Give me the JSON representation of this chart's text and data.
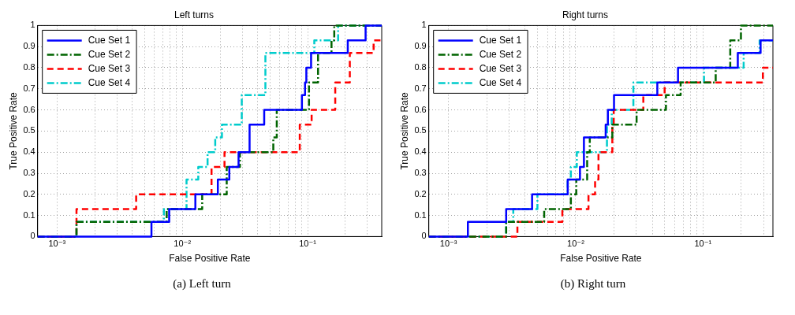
{
  "chart_data": [
    {
      "type": "step",
      "title": "Left turns",
      "xlabel": "False Positive Rate",
      "ylabel": "True Positive Rate",
      "log": "x",
      "grid": true,
      "legend": "top left",
      "xlim": [
        0.0007,
        0.39
      ],
      "ylim": [
        0,
        1
      ],
      "xticks": [
        {
          "value": 0.001,
          "label": "10⁻³"
        },
        {
          "value": 0.002,
          "label": null
        },
        {
          "value": 0.003,
          "label": null
        },
        {
          "value": 0.004,
          "label": null
        },
        {
          "value": 0.005,
          "label": null
        },
        {
          "value": 0.006,
          "label": null
        },
        {
          "value": 0.007,
          "label": null
        },
        {
          "value": 0.008,
          "label": null
        },
        {
          "value": 0.009,
          "label": null
        },
        {
          "value": 0.01,
          "label": "10⁻²"
        },
        {
          "value": 0.02,
          "label": null
        },
        {
          "value": 0.03,
          "label": null
        },
        {
          "value": 0.04,
          "label": null
        },
        {
          "value": 0.05,
          "label": null
        },
        {
          "value": 0.06,
          "label": null
        },
        {
          "value": 0.07,
          "label": null
        },
        {
          "value": 0.08,
          "label": null
        },
        {
          "value": 0.09,
          "label": null
        },
        {
          "value": 0.1,
          "label": "10⁻¹"
        },
        {
          "value": 0.2,
          "label": null
        },
        {
          "value": 0.3,
          "label": null
        }
      ],
      "yticks": [
        0,
        0.1,
        0.2,
        0.3,
        0.4,
        0.5,
        0.6,
        0.7,
        0.8,
        0.9,
        1
      ],
      "annotations": [
        "(a)  Left turn"
      ],
      "series": [
        {
          "name": "Cue Set 1",
          "color": "#0000ff",
          "line_style": "solid",
          "x": [
            0.0007,
            0.00567,
            0.00785,
            0.0127,
            0.0192,
            0.0237,
            0.0281,
            0.0344,
            0.045,
            0.09,
            0.0953,
            0.0976,
            0.1065,
            0.209,
            0.29,
            0.39
          ],
          "values": [
            0,
            0.07,
            0.13,
            0.2,
            0.27,
            0.33,
            0.4,
            0.53,
            0.6,
            0.67,
            0.73,
            0.8,
            0.87,
            0.93,
            1,
            1
          ]
        },
        {
          "name": "Cue Set 2",
          "color": "#006400",
          "line_style": "dashdot",
          "x": [
            0.0007,
            0.00143,
            0.0075,
            0.0144,
            0.0226,
            0.0288,
            0.0532,
            0.0567,
            0.1025,
            0.121,
            0.155,
            0.163,
            0.39
          ],
          "values": [
            0,
            0.07,
            0.13,
            0.2,
            0.33,
            0.4,
            0.47,
            0.6,
            0.73,
            0.87,
            0.93,
            1,
            1
          ]
        },
        {
          "name": "Cue Set 3",
          "color": "#ff0000",
          "line_style": "dashed",
          "x": [
            0.0007,
            0.00143,
            0.00428,
            0.0171,
            0.0217,
            0.0865,
            0.1076,
            0.166,
            0.217,
            0.336,
            0.39
          ],
          "values": [
            0,
            0.13,
            0.2,
            0.33,
            0.4,
            0.53,
            0.6,
            0.73,
            0.87,
            0.93,
            0.93
          ]
        },
        {
          "name": "Cue Set 4",
          "color": "#00cccc",
          "line_style": "dashdot",
          "x": [
            0.0007,
            0.00143,
            0.00713,
            0.0108,
            0.0134,
            0.0159,
            0.0183,
            0.0207,
            0.0298,
            0.046,
            0.113,
            0.175,
            0.39
          ],
          "values": [
            0,
            0.07,
            0.13,
            0.27,
            0.33,
            0.4,
            0.47,
            0.53,
            0.67,
            0.87,
            0.93,
            1,
            1
          ]
        }
      ]
    },
    {
      "type": "step",
      "title": "Right turns",
      "xlabel": "False Positive Rate",
      "ylabel": "True Positive Rate",
      "log": "x",
      "grid": true,
      "legend": "top left",
      "xlim": [
        0.0007,
        0.355
      ],
      "ylim": [
        0,
        1
      ],
      "xticks": [
        {
          "value": 0.001,
          "label": "10⁻³"
        },
        {
          "value": 0.002,
          "label": null
        },
        {
          "value": 0.003,
          "label": null
        },
        {
          "value": 0.004,
          "label": null
        },
        {
          "value": 0.005,
          "label": null
        },
        {
          "value": 0.006,
          "label": null
        },
        {
          "value": 0.007,
          "label": null
        },
        {
          "value": 0.008,
          "label": null
        },
        {
          "value": 0.009,
          "label": null
        },
        {
          "value": 0.01,
          "label": "10⁻²"
        },
        {
          "value": 0.02,
          "label": null
        },
        {
          "value": 0.03,
          "label": null
        },
        {
          "value": 0.04,
          "label": null
        },
        {
          "value": 0.05,
          "label": null
        },
        {
          "value": 0.06,
          "label": null
        },
        {
          "value": 0.07,
          "label": null
        },
        {
          "value": 0.08,
          "label": null
        },
        {
          "value": 0.09,
          "label": null
        },
        {
          "value": 0.1,
          "label": "10⁻¹"
        },
        {
          "value": 0.2,
          "label": null
        },
        {
          "value": 0.3,
          "label": null
        }
      ],
      "yticks": [
        0,
        0.1,
        0.2,
        0.3,
        0.4,
        0.5,
        0.6,
        0.7,
        0.8,
        0.9,
        1
      ],
      "annotations": [
        "(b)  Right turn"
      ],
      "series": [
        {
          "name": "Cue Set 1",
          "color": "#0000ff",
          "line_style": "solid",
          "x": [
            0.0007,
            0.00142,
            0.00284,
            0.00454,
            0.00865,
            0.0108,
            0.0116,
            0.0172,
            0.0179,
            0.02,
            0.0438,
            0.0637,
            0.188,
            0.284,
            0.355
          ],
          "values": [
            0,
            0.07,
            0.13,
            0.2,
            0.27,
            0.33,
            0.47,
            0.53,
            0.6,
            0.67,
            0.73,
            0.8,
            0.87,
            0.93,
            0.93
          ]
        },
        {
          "name": "Cue Set 2",
          "color": "#006400",
          "line_style": "dashdot",
          "x": [
            0.0007,
            0.00284,
            0.00565,
            0.00916,
            0.0101,
            0.0123,
            0.0129,
            0.0194,
            0.0301,
            0.0512,
            0.0668,
            0.126,
            0.164,
            0.199,
            0.355
          ],
          "values": [
            0,
            0.07,
            0.13,
            0.2,
            0.27,
            0.4,
            0.47,
            0.53,
            0.6,
            0.67,
            0.73,
            0.8,
            0.93,
            1,
            1
          ]
        },
        {
          "name": "Cue Set 3",
          "color": "#ff0000",
          "line_style": "dashed",
          "x": [
            0.0007,
            0.00348,
            0.00785,
            0.0126,
            0.0142,
            0.0151,
            0.0194,
            0.0199,
            0.034,
            0.05,
            0.296,
            0.355
          ],
          "values": [
            0,
            0.07,
            0.13,
            0.2,
            0.27,
            0.4,
            0.53,
            0.6,
            0.67,
            0.73,
            0.8,
            0.8
          ]
        },
        {
          "name": "Cue Set 4",
          "color": "#00cccc",
          "line_style": "dashdot",
          "x": [
            0.0007,
            0.00284,
            0.00323,
            0.005,
            0.00865,
            0.00916,
            0.0102,
            0.0176,
            0.0192,
            0.0284,
            0.102,
            0.209,
            0.279,
            0.355
          ],
          "values": [
            0,
            0.07,
            0.13,
            0.2,
            0.27,
            0.33,
            0.4,
            0.53,
            0.6,
            0.73,
            0.8,
            0.87,
            0.93,
            0.93
          ]
        }
      ]
    }
  ]
}
